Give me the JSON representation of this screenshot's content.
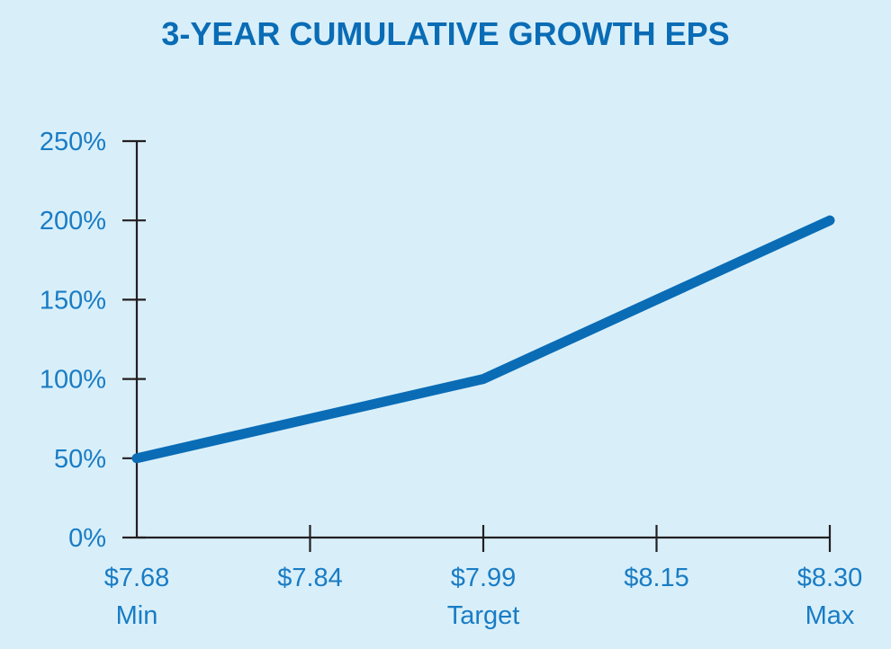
{
  "chart_data": {
    "type": "line",
    "title": "3-YEAR CUMULATIVE GROWTH EPS",
    "xlabel": "",
    "ylabel": "",
    "x_tick_labels": [
      "$7.68",
      "$7.84",
      "$7.99",
      "$8.15",
      "$8.30"
    ],
    "x_sub_labels": [
      "Min",
      "",
      "Target",
      "",
      "Max"
    ],
    "y_tick_labels": [
      "0%",
      "50%",
      "100%",
      "150%",
      "200%",
      "250%"
    ],
    "ylim": [
      0,
      250
    ],
    "y_ticks": [
      0,
      50,
      100,
      150,
      200,
      250
    ],
    "series": [
      {
        "name": "3-Year Cumulative Growth EPS",
        "x": [
          0,
          1,
          2,
          3,
          4
        ],
        "values": [
          50,
          75,
          100,
          150,
          200
        ]
      }
    ],
    "grid": false,
    "colors": {
      "line": "#0a6cb5",
      "tick_text": "#1a7cc4",
      "axis": "#231f20",
      "background": "#d8effa"
    }
  }
}
